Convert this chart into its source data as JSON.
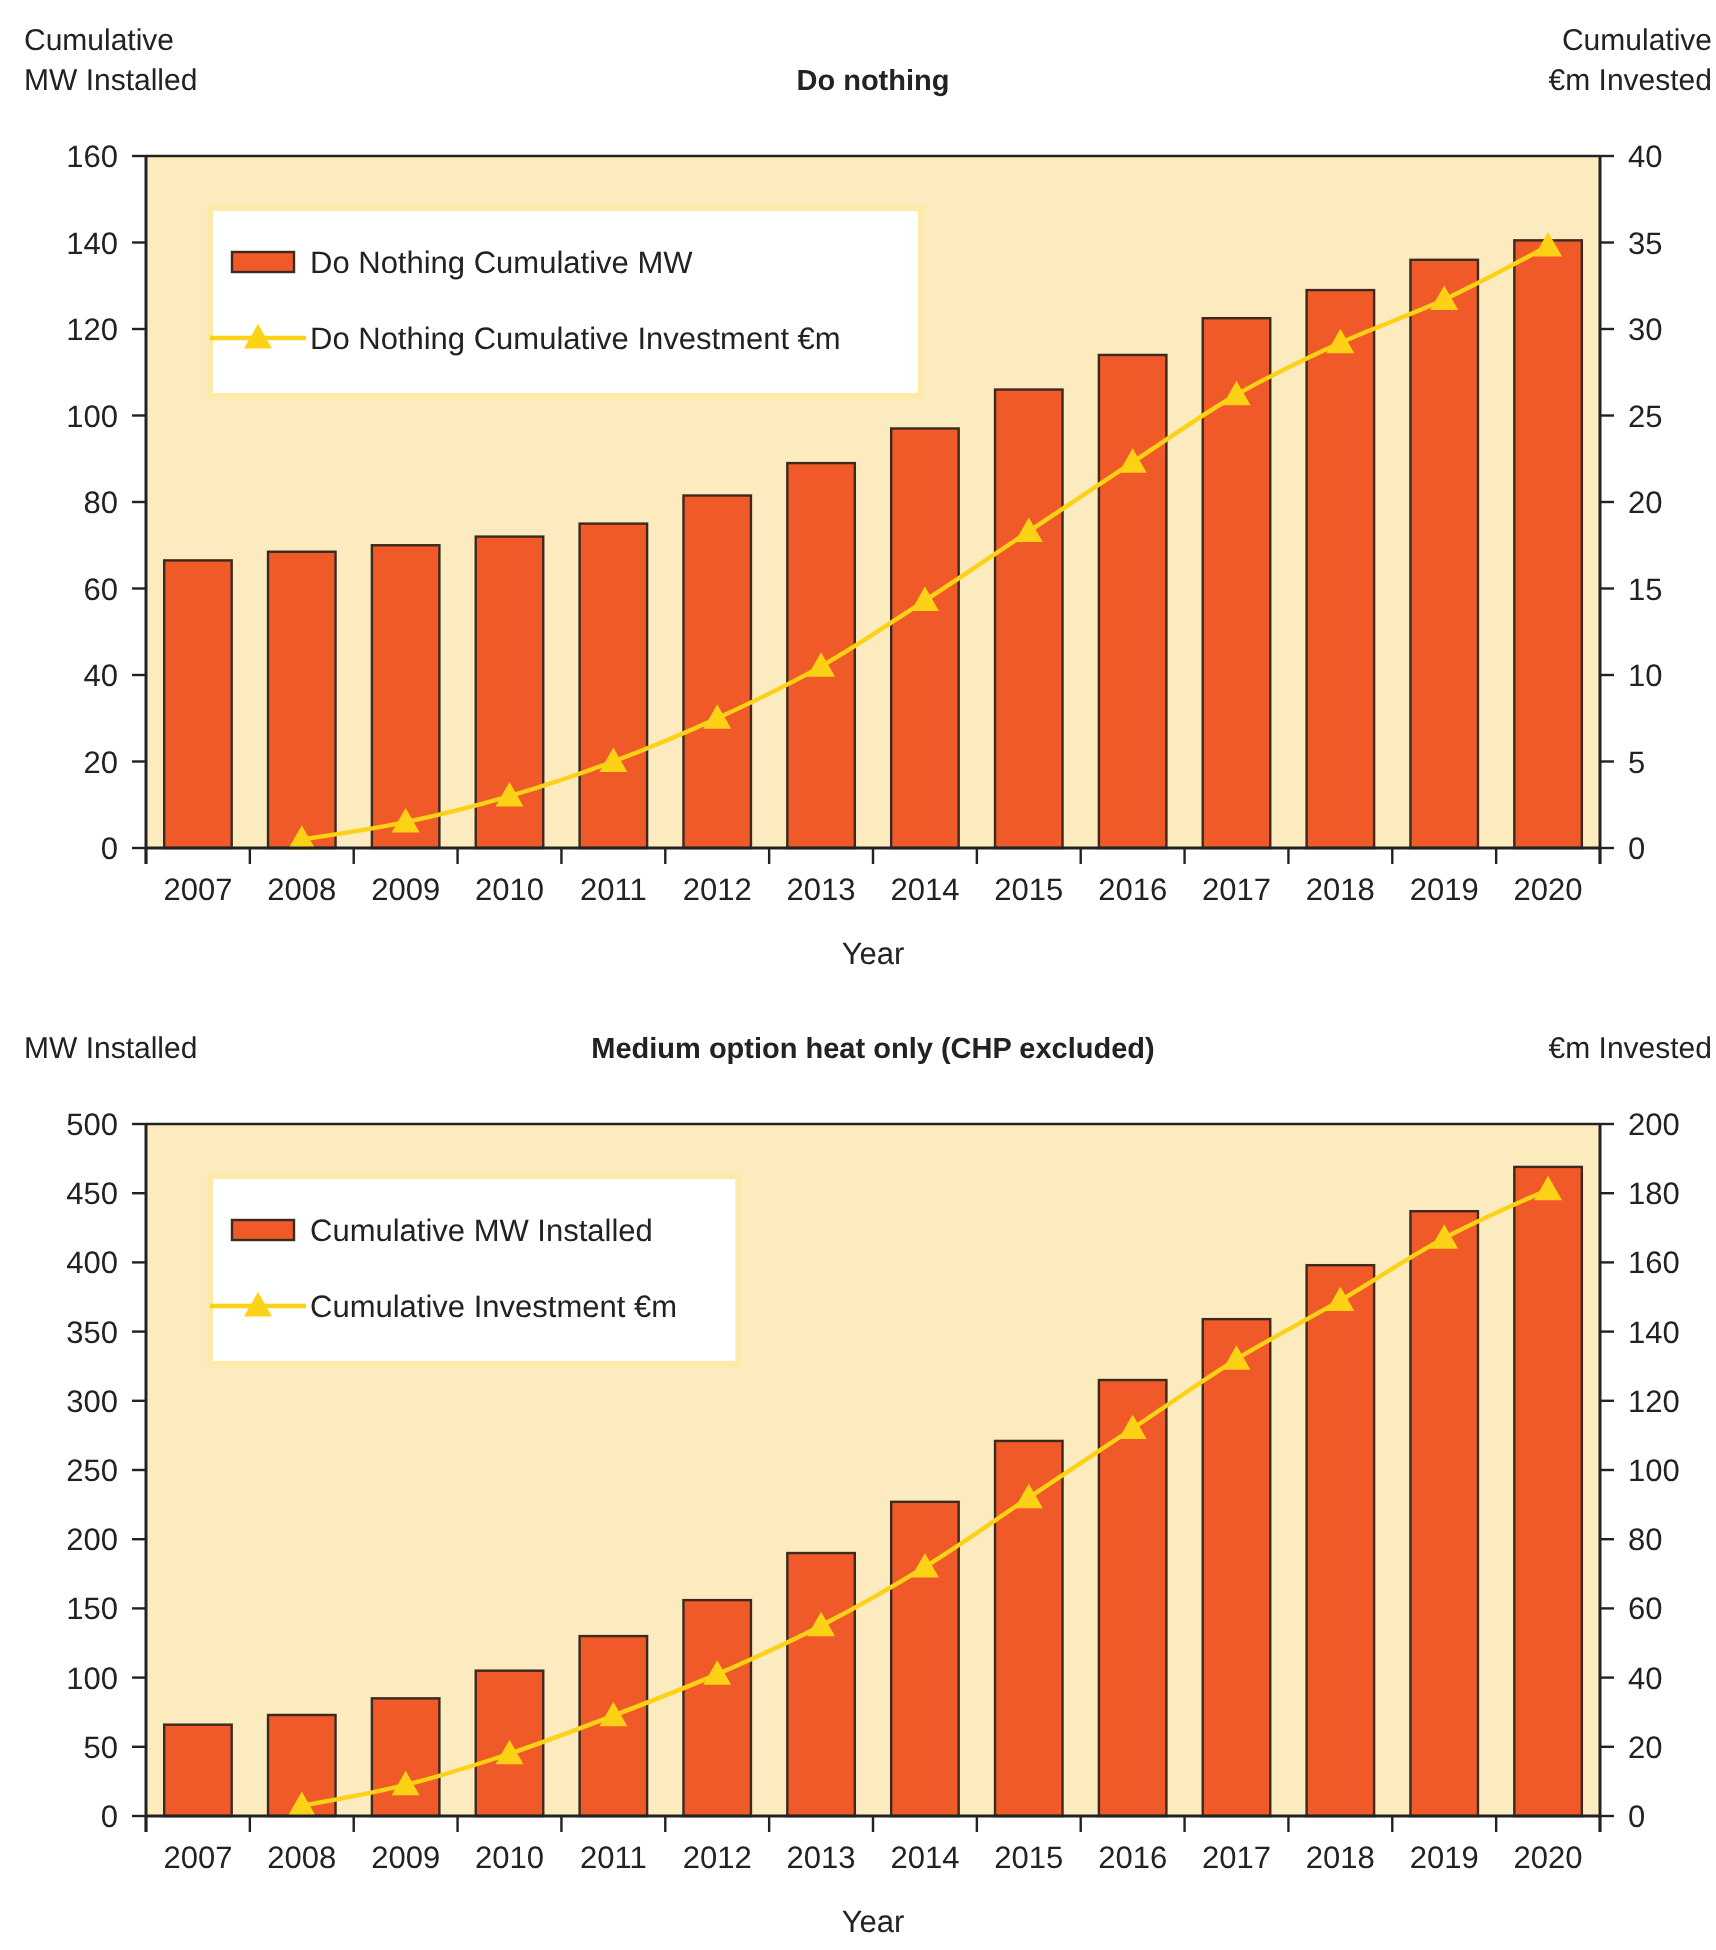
{
  "chart_data": [
    {
      "type": "bar",
      "title": "Do nothing",
      "ylabel": "Cumulative\nMW Installed",
      "y2label": "Cumulative\n€m Invested",
      "xlabel": "Year",
      "categories": [
        "2007",
        "2008",
        "2009",
        "2010",
        "2011",
        "2012",
        "2013",
        "2014",
        "2015",
        "2016",
        "2017",
        "2018",
        "2019",
        "2020"
      ],
      "series": [
        {
          "name": "Do Nothing Cumulative MW",
          "color": "#f05a28",
          "values": [
            66.5,
            68.5,
            70,
            72,
            75,
            81.5,
            89,
            97,
            106,
            114,
            122.5,
            129,
            136,
            140.5
          ]
        },
        {
          "name": "Do Nothing Cumulative Investment €m",
          "type": "line",
          "axis": "y2",
          "color": "#fcd116",
          "values": [
            null,
            0.5,
            1.5,
            3,
            5,
            7.5,
            10.5,
            14.3,
            18.3,
            22.3,
            26.2,
            29.2,
            31.7,
            34.8
          ]
        }
      ],
      "ylim": [
        0,
        160
      ],
      "yticks": [
        0,
        20,
        40,
        60,
        80,
        100,
        120,
        140,
        160
      ],
      "y2lim": [
        0,
        40
      ],
      "y2ticks": [
        0,
        5,
        10,
        15,
        20,
        25,
        30,
        35,
        40
      ],
      "legend": "top left",
      "marker": "triangle",
      "grid": false
    },
    {
      "type": "bar",
      "title": "Medium option heat only (CHP excluded)",
      "ylabel": "MW Installed",
      "y2label": "€m Invested",
      "xlabel": "Year",
      "categories": [
        "2007",
        "2008",
        "2009",
        "2010",
        "2011",
        "2012",
        "2013",
        "2014",
        "2015",
        "2016",
        "2017",
        "2018",
        "2019",
        "2020"
      ],
      "series": [
        {
          "name": "Cumulative MW Installed",
          "color": "#f05a28",
          "values": [
            66,
            73,
            85,
            105,
            130,
            156,
            190,
            227,
            271,
            315,
            359,
            398,
            437,
            469
          ]
        },
        {
          "name": "Cumulative Investment €m",
          "type": "line",
          "axis": "y2",
          "color": "#fcd116",
          "values": [
            null,
            3,
            9,
            18,
            29,
            41,
            55,
            72,
            92,
            112,
            132,
            149,
            167,
            181
          ]
        }
      ],
      "ylim": [
        0,
        500
      ],
      "yticks": [
        0,
        50,
        100,
        150,
        200,
        250,
        300,
        350,
        400,
        450,
        500
      ],
      "y2lim": [
        0,
        200
      ],
      "y2ticks": [
        0,
        20,
        40,
        60,
        80,
        100,
        120,
        140,
        160,
        180,
        200
      ],
      "legend": "top left",
      "marker": "triangle",
      "grid": false
    }
  ]
}
